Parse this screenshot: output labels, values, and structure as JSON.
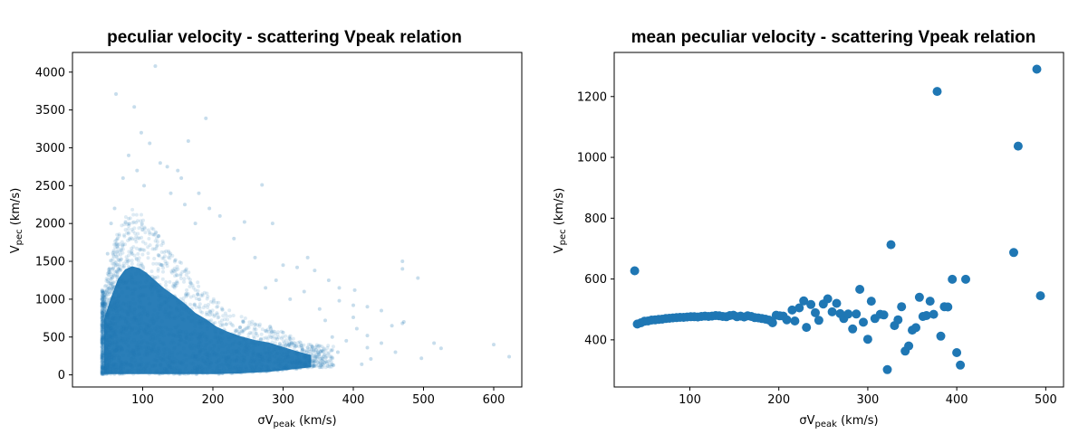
{
  "chart_data": [
    {
      "type": "scatter",
      "title": "peculiar velocity - scattering Vpeak relation",
      "xlabel": {
        "prefix": "σV",
        "sub": "peak",
        "suffix": " (km/s)"
      },
      "ylabel": {
        "prefix": "V",
        "sub": "pec",
        "suffix": " (km/s)"
      },
      "xlim": [
        0,
        640
      ],
      "ylim": [
        -160,
        4260
      ],
      "xticks": [
        100,
        200,
        300,
        400,
        500,
        600
      ],
      "yticks": [
        0,
        500,
        1000,
        1500,
        2000,
        2500,
        3000,
        3500,
        4000
      ],
      "grid": false,
      "marker_color": "#1f77b4",
      "marker_alpha": 0.15,
      "points": [
        [
          62,
          3710
        ],
        [
          118,
          4080
        ],
        [
          88,
          3540
        ],
        [
          98,
          3200
        ],
        [
          110,
          3060
        ],
        [
          190,
          3390
        ],
        [
          165,
          3090
        ],
        [
          125,
          2800
        ],
        [
          135,
          2750
        ],
        [
          150,
          2700
        ],
        [
          155,
          2600
        ],
        [
          180,
          2400
        ],
        [
          270,
          2510
        ],
        [
          285,
          2000
        ],
        [
          245,
          2020
        ],
        [
          260,
          1550
        ],
        [
          300,
          1450
        ],
        [
          320,
          1420
        ],
        [
          335,
          1550
        ],
        [
          345,
          1380
        ],
        [
          365,
          1250
        ],
        [
          380,
          1150
        ],
        [
          402,
          1120
        ],
        [
          470,
          1500
        ],
        [
          470,
          1400
        ],
        [
          492,
          1280
        ],
        [
          472,
          700
        ],
        [
          470,
          680
        ],
        [
          380,
          980
        ],
        [
          400,
          920
        ],
        [
          420,
          900
        ],
        [
          440,
          850
        ],
        [
          405,
          610
        ],
        [
          360,
          720
        ],
        [
          400,
          760
        ],
        [
          420,
          520
        ],
        [
          455,
          650
        ],
        [
          525,
          350
        ],
        [
          515,
          420
        ],
        [
          497,
          220
        ],
        [
          600,
          400
        ],
        [
          622,
          240
        ],
        [
          230,
          1800
        ],
        [
          210,
          2100
        ],
        [
          195,
          2200
        ],
        [
          175,
          2000
        ],
        [
          160,
          2250
        ],
        [
          140,
          2400
        ],
        [
          72,
          2600
        ],
        [
          80,
          2900
        ],
        [
          92,
          2700
        ],
        [
          102,
          2500
        ],
        [
          60,
          2200
        ],
        [
          55,
          2000
        ],
        [
          50,
          1600
        ],
        [
          330,
          1100
        ],
        [
          310,
          1000
        ],
        [
          290,
          1250
        ],
        [
          275,
          1150
        ],
        [
          352,
          870
        ],
        [
          370,
          500
        ],
        [
          390,
          450
        ],
        [
          420,
          360
        ],
        [
          425,
          210
        ],
        [
          412,
          140
        ],
        [
          345,
          180
        ],
        [
          378,
          300
        ],
        [
          300,
          560
        ],
        [
          440,
          420
        ],
        [
          460,
          300
        ]
      ],
      "density_profile": {
        "x": [
          45,
          55,
          65,
          75,
          85,
          95,
          105,
          115,
          130,
          145,
          160,
          175,
          190,
          205,
          220,
          240,
          260,
          280,
          300,
          320,
          340
        ],
        "y_low": [
          10,
          10,
          10,
          10,
          10,
          10,
          10,
          10,
          10,
          10,
          10,
          10,
          10,
          10,
          15,
          20,
          30,
          40,
          60,
          80,
          100
        ],
        "y_high": [
          900,
          1250,
          1550,
          1700,
          1750,
          1720,
          1650,
          1550,
          1400,
          1280,
          1150,
          1000,
          900,
          780,
          700,
          620,
          560,
          520,
          450,
          380,
          320
        ]
      }
    },
    {
      "type": "scatter",
      "title": "mean peculiar velocity - scattering Vpeak relation",
      "xlabel": {
        "prefix": "σV",
        "sub": "peak",
        "suffix": " (km/s)"
      },
      "ylabel": {
        "prefix": "V",
        "sub": "pec",
        "suffix": " (km/s)"
      },
      "xlim": [
        15,
        520
      ],
      "ylim": [
        245,
        1345
      ],
      "xticks": [
        100,
        200,
        300,
        400,
        500
      ],
      "yticks": [
        400,
        600,
        800,
        1000,
        1200
      ],
      "grid": false,
      "marker_color": "#1f77b4",
      "points": [
        [
          38,
          627
        ],
        [
          41,
          452
        ],
        [
          45,
          456
        ],
        [
          49,
          461
        ],
        [
          53,
          462
        ],
        [
          57,
          465
        ],
        [
          61,
          466
        ],
        [
          65,
          467
        ],
        [
          69,
          468
        ],
        [
          73,
          470
        ],
        [
          77,
          471
        ],
        [
          81,
          472
        ],
        [
          85,
          473
        ],
        [
          89,
          474
        ],
        [
          93,
          474
        ],
        [
          97,
          475
        ],
        [
          101,
          476
        ],
        [
          105,
          476
        ],
        [
          109,
          475
        ],
        [
          113,
          477
        ],
        [
          117,
          478
        ],
        [
          121,
          477
        ],
        [
          125,
          478
        ],
        [
          129,
          480
        ],
        [
          133,
          479
        ],
        [
          137,
          477
        ],
        [
          141,
          476
        ],
        [
          145,
          480
        ],
        [
          149,
          481
        ],
        [
          153,
          476
        ],
        [
          157,
          478
        ],
        [
          161,
          475
        ],
        [
          165,
          479
        ],
        [
          169,
          477
        ],
        [
          173,
          473
        ],
        [
          177,
          472
        ],
        [
          181,
          470
        ],
        [
          185,
          468
        ],
        [
          189,
          465
        ],
        [
          193,
          456
        ],
        [
          197,
          481
        ],
        [
          201,
          479
        ],
        [
          205,
          478
        ],
        [
          209,
          466
        ],
        [
          215,
          498
        ],
        [
          218,
          462
        ],
        [
          223,
          505
        ],
        [
          228,
          528
        ],
        [
          231,
          441
        ],
        [
          236,
          516
        ],
        [
          241,
          489
        ],
        [
          245,
          464
        ],
        [
          250,
          518
        ],
        [
          255,
          535
        ],
        [
          260,
          492
        ],
        [
          265,
          520
        ],
        [
          269,
          486
        ],
        [
          273,
          470
        ],
        [
          278,
          485
        ],
        [
          283,
          436
        ],
        [
          287,
          485
        ],
        [
          291,
          566
        ],
        [
          295,
          458
        ],
        [
          300,
          402
        ],
        [
          304,
          527
        ],
        [
          308,
          470
        ],
        [
          314,
          484
        ],
        [
          318,
          482
        ],
        [
          322,
          302
        ],
        [
          326,
          713
        ],
        [
          330,
          447
        ],
        [
          334,
          466
        ],
        [
          338,
          509
        ],
        [
          342,
          363
        ],
        [
          346,
          380
        ],
        [
          350,
          432
        ],
        [
          354,
          440
        ],
        [
          358,
          540
        ],
        [
          362,
          477
        ],
        [
          366,
          480
        ],
        [
          370,
          527
        ],
        [
          374,
          484
        ],
        [
          378,
          1217
        ],
        [
          382,
          412
        ],
        [
          386,
          509
        ],
        [
          390,
          508
        ],
        [
          395,
          599
        ],
        [
          400,
          358
        ],
        [
          404,
          317
        ],
        [
          410,
          599
        ],
        [
          464,
          687
        ],
        [
          469,
          1037
        ],
        [
          490,
          1290
        ],
        [
          494,
          545
        ]
      ]
    }
  ]
}
